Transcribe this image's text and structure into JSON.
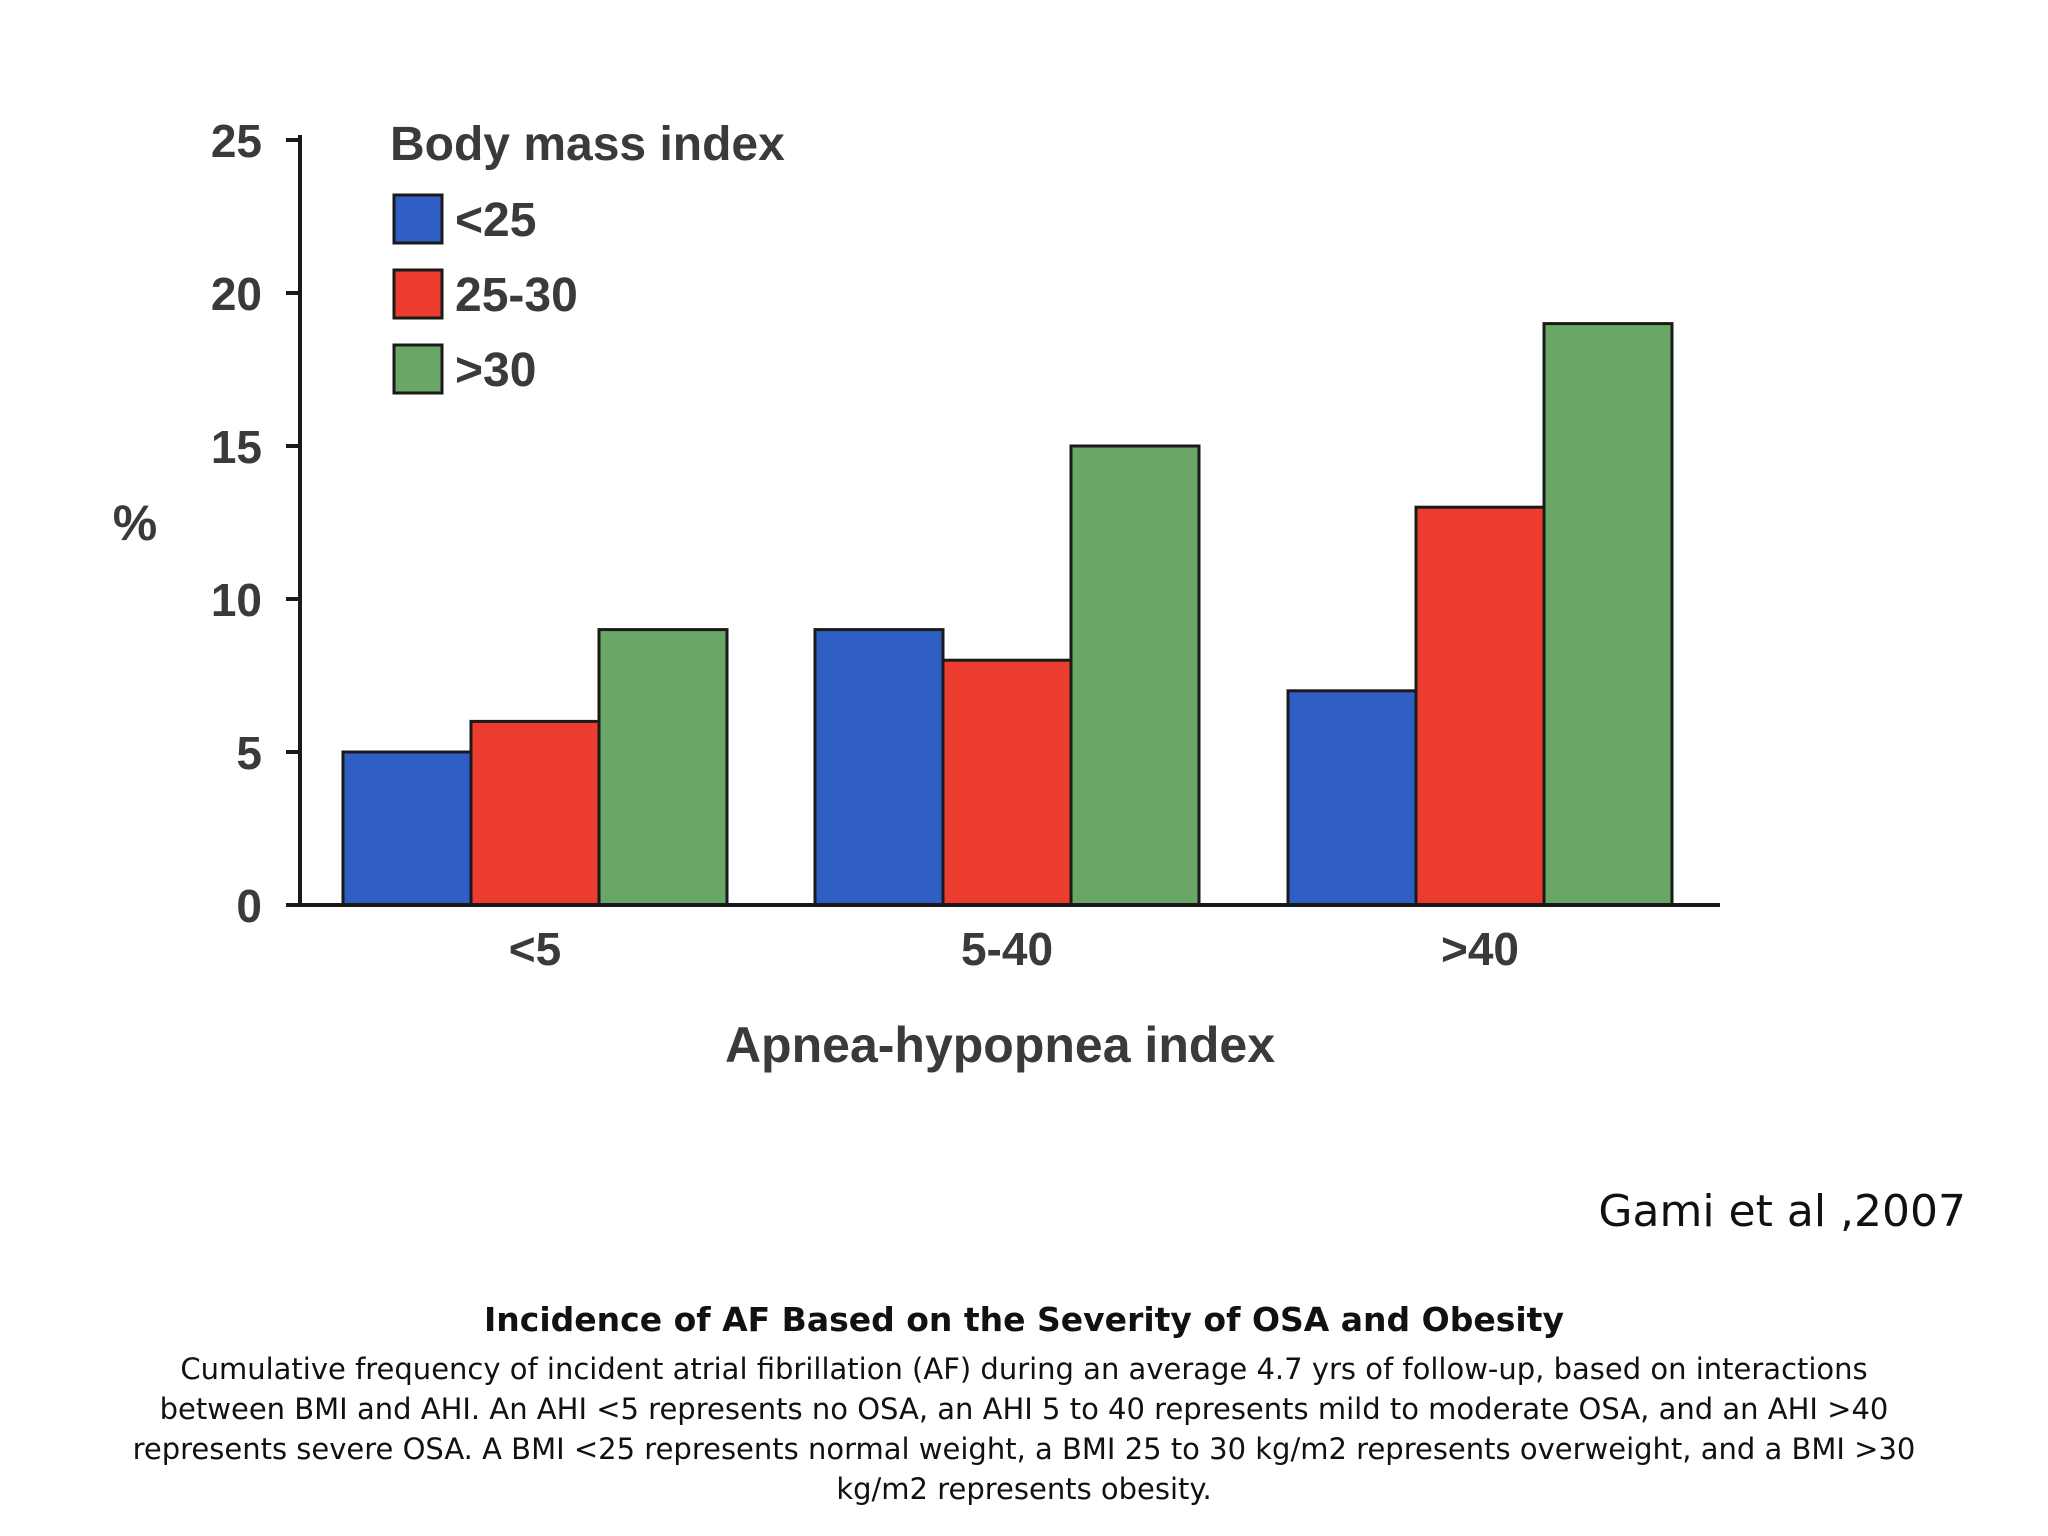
{
  "chart_data": {
    "type": "bar",
    "categories": [
      "<5",
      "5-40",
      ">40"
    ],
    "series": [
      {
        "name": "<25",
        "color": "#2f5ec4",
        "values": [
          5,
          9,
          7
        ]
      },
      {
        "name": "25-30",
        "color": "#ec3c30",
        "values": [
          6,
          8,
          13
        ]
      },
      {
        "name": ">30",
        "color": "#6aa766",
        "values": [
          9,
          15,
          19
        ]
      }
    ],
    "ylim": [
      0,
      25
    ],
    "yticks": [
      0,
      5,
      10,
      15,
      20,
      25
    ],
    "ylabel": "%",
    "xlabel": "Apnea-hypopnea index",
    "legend_title": "Body mass index",
    "legend_position": "top-left",
    "grid": false
  },
  "citation": "Gami et al ,2007",
  "caption": {
    "title": "Incidence of AF Based on the Severity of OSA and Obesity",
    "body": "Cumulative frequency of incident atrial fibrillation (AF) during an average 4.7 yrs of follow-up, based on interactions between BMI and AHI. An AHI <5 represents no OSA, an AHI 5 to 40 represents mild to moderate OSA, and an AHI >40 represents severe OSA. A BMI <25 represents normal weight, a BMI 25 to 30 kg/m2 represents overweight, and a BMI >30 kg/m2 represents obesity."
  }
}
